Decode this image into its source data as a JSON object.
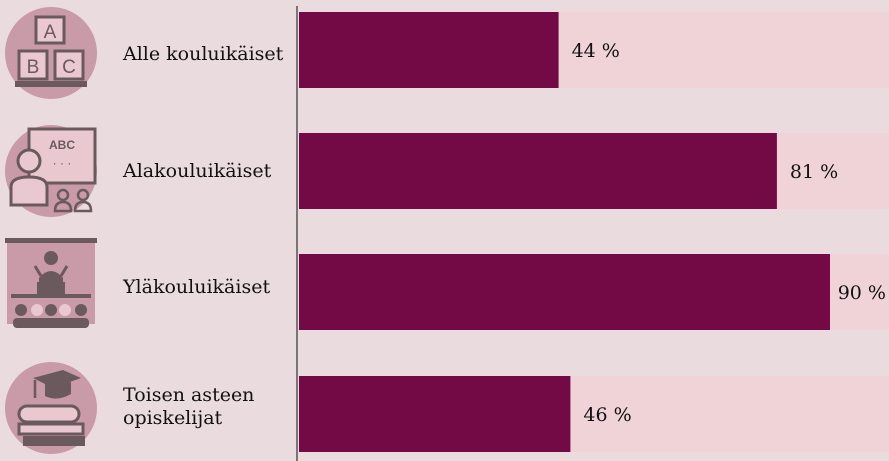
{
  "chart_data": {
    "type": "bar",
    "orientation": "horizontal",
    "categories": [
      "Alle kouluikäiset",
      "Alakouluikäiset",
      "Yläkouluikäiset",
      "Toisen asteen\nopiskelijat"
    ],
    "values": [
      44,
      81,
      90,
      46
    ],
    "value_labels": [
      "44 %",
      "81 %",
      "90 %",
      "46 %"
    ],
    "xlim": [
      0,
      100
    ],
    "title": "",
    "xlabel": "",
    "ylabel": "",
    "grid": false,
    "legend": "none"
  },
  "icons": [
    "abc-blocks-icon",
    "teacher-blackboard-icon",
    "lecture-audience-icon",
    "graduation-books-icon"
  ],
  "colors": {
    "background": "#eadcde",
    "bar": "#730a45",
    "track": "#f0d3d7",
    "axis": "#777777",
    "icon_circle": "#c99aa7",
    "icon_dark": "#6a5a5e"
  }
}
